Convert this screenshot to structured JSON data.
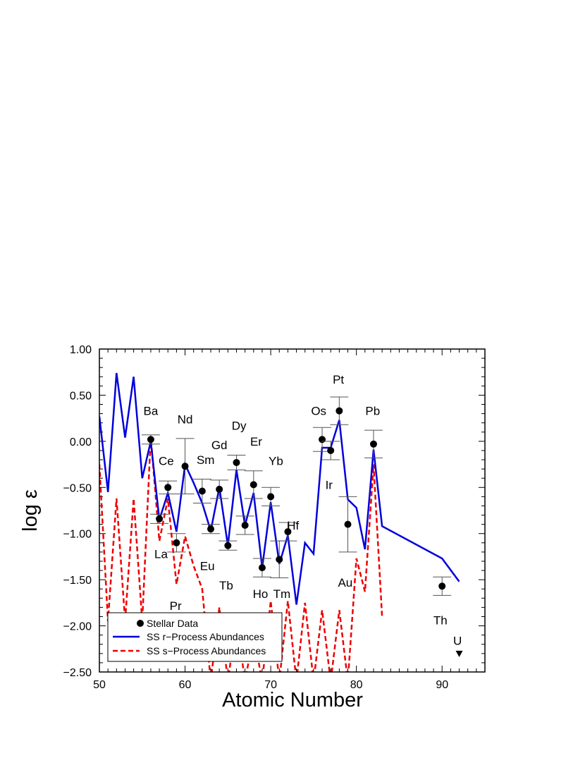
{
  "chart_data": {
    "type": "scatter",
    "xlabel": "Atomic Number",
    "ylabel": "log ε",
    "xlim": [
      50,
      95
    ],
    "ylim": [
      -2.5,
      1.0
    ],
    "x_ticks": [
      50,
      60,
      70,
      80,
      90
    ],
    "x_tick_labels": [
      "50",
      "60",
      "70",
      "80",
      "90"
    ],
    "y_ticks": [
      1.0,
      0.5,
      0.0,
      -0.5,
      -1.0,
      -1.5,
      -2.0,
      -2.5
    ],
    "y_tick_labels": [
      "1.00",
      "0.50",
      "0.00",
      "−0.50",
      "−1.00",
      "−1.50",
      "−2.00",
      "−2.50"
    ],
    "grid": false,
    "legend_position": "bottom-left",
    "legend": [
      {
        "label": "Stellar Data",
        "style": "marker",
        "color": "#000000"
      },
      {
        "label": "SS r−Process Abundances",
        "style": "solid",
        "color": "#0000dd"
      },
      {
        "label": "SS s−Process Abundances",
        "style": "dashed",
        "color": "#ee0000"
      }
    ],
    "stellar_data": [
      {
        "z": 56,
        "y": 0.02,
        "err": 0.05
      },
      {
        "z": 57,
        "y": -0.84,
        "err": 0.05
      },
      {
        "z": 58,
        "y": -0.5,
        "err": 0.07
      },
      {
        "z": 59,
        "y": -1.1,
        "err": 0.1
      },
      {
        "z": 60,
        "y": -0.27,
        "err": 0.3
      },
      {
        "z": 62,
        "y": -0.54,
        "err": 0.13
      },
      {
        "z": 63,
        "y": -0.95,
        "err": 0.05
      },
      {
        "z": 64,
        "y": -0.52,
        "err": 0.1
      },
      {
        "z": 65,
        "y": -1.13,
        "err": 0.05
      },
      {
        "z": 66,
        "y": -0.23,
        "err": 0.08
      },
      {
        "z": 67,
        "y": -0.91,
        "err": 0.1
      },
      {
        "z": 68,
        "y": -0.47,
        "err": 0.15
      },
      {
        "z": 69,
        "y": -1.37,
        "err": 0.1
      },
      {
        "z": 70,
        "y": -0.6,
        "err": 0.1
      },
      {
        "z": 71,
        "y": -1.28,
        "err": 0.2
      },
      {
        "z": 72,
        "y": -0.98,
        "err": 0.1
      },
      {
        "z": 76,
        "y": 0.02,
        "err": 0.13
      },
      {
        "z": 77,
        "y": -0.1,
        "err": 0.1
      },
      {
        "z": 78,
        "y": 0.33,
        "err": 0.15
      },
      {
        "z": 79,
        "y": -0.9,
        "err": 0.3
      },
      {
        "z": 82,
        "y": -0.03,
        "err": 0.15
      },
      {
        "z": 90,
        "y": -1.57,
        "err": 0.1
      }
    ],
    "upper_limits": [
      {
        "z": 92,
        "y": -2.3
      }
    ],
    "r_process": {
      "name": "SS r−Process Abundances",
      "color": "#0000dd",
      "points": [
        [
          50,
          0.27
        ],
        [
          51,
          -0.55
        ],
        [
          52,
          0.74
        ],
        [
          53,
          0.04
        ],
        [
          54,
          0.7
        ],
        [
          55,
          -0.4
        ],
        [
          56,
          0.0
        ],
        [
          57,
          -0.85
        ],
        [
          58,
          -0.56
        ],
        [
          59,
          -0.98
        ],
        [
          60,
          -0.25
        ],
        [
          61,
          -0.45
        ],
        [
          62,
          -0.67
        ],
        [
          63,
          -0.97
        ],
        [
          64,
          -0.5
        ],
        [
          65,
          -1.13
        ],
        [
          66,
          -0.31
        ],
        [
          67,
          -0.91
        ],
        [
          68,
          -0.56
        ],
        [
          69,
          -1.37
        ],
        [
          70,
          -0.66
        ],
        [
          71,
          -1.33
        ],
        [
          72,
          -1.02
        ],
        [
          73,
          -1.77
        ],
        [
          74,
          -1.1
        ],
        [
          75,
          -1.22
        ],
        [
          76,
          -0.07
        ],
        [
          77,
          -0.07
        ],
        [
          78,
          0.23
        ],
        [
          79,
          -0.63
        ],
        [
          80,
          -0.72
        ],
        [
          81,
          -1.17
        ],
        [
          82,
          -0.09
        ],
        [
          83,
          -0.92
        ],
        [
          90,
          -1.27
        ],
        [
          92,
          -1.52
        ]
      ]
    },
    "s_process": {
      "name": "SS s−Process Abundances",
      "color": "#ee0000",
      "points": [
        [
          50,
          -0.25
        ],
        [
          51,
          -1.95
        ],
        [
          52,
          -0.62
        ],
        [
          53,
          -1.95
        ],
        [
          54,
          -0.62
        ],
        [
          55,
          -1.95
        ],
        [
          56,
          0.05
        ],
        [
          57,
          -1.08
        ],
        [
          58,
          -0.62
        ],
        [
          59,
          -1.55
        ],
        [
          60,
          -1.03
        ],
        [
          61,
          -1.35
        ],
        [
          62,
          -1.6
        ],
        [
          63,
          -2.6
        ],
        [
          64,
          -1.8
        ],
        [
          65,
          -2.6
        ],
        [
          66,
          -1.93
        ],
        [
          67,
          -2.6
        ],
        [
          68,
          -2.1
        ],
        [
          69,
          -2.6
        ],
        [
          70,
          -1.73
        ],
        [
          71,
          -2.6
        ],
        [
          72,
          -1.73
        ],
        [
          73,
          -2.6
        ],
        [
          74,
          -1.75
        ],
        [
          75,
          -2.6
        ],
        [
          76,
          -1.83
        ],
        [
          77,
          -2.6
        ],
        [
          78,
          -1.83
        ],
        [
          79,
          -2.6
        ],
        [
          80,
          -1.27
        ],
        [
          81,
          -1.63
        ],
        [
          82,
          -0.25
        ],
        [
          83,
          -1.9
        ]
      ]
    },
    "element_labels": [
      {
        "text": "Ba",
        "z": 56.0,
        "y": 0.33
      },
      {
        "text": "La",
        "z": 57.2,
        "y": -1.22
      },
      {
        "text": "Ce",
        "z": 57.8,
        "y": -0.21
      },
      {
        "text": "Pr",
        "z": 58.9,
        "y": -1.78
      },
      {
        "text": "Nd",
        "z": 60.0,
        "y": 0.24
      },
      {
        "text": "Sm",
        "z": 62.4,
        "y": -0.2
      },
      {
        "text": "Eu",
        "z": 62.6,
        "y": -1.35
      },
      {
        "text": "Gd",
        "z": 64.0,
        "y": -0.04
      },
      {
        "text": "Tb",
        "z": 64.8,
        "y": -1.56
      },
      {
        "text": "Dy",
        "z": 66.3,
        "y": 0.17
      },
      {
        "text": "Er",
        "z": 68.3,
        "y": 0.0
      },
      {
        "text": "Ho",
        "z": 68.8,
        "y": -1.65
      },
      {
        "text": "Yb",
        "z": 70.6,
        "y": -0.21
      },
      {
        "text": "Tm",
        "z": 71.3,
        "y": -1.65
      },
      {
        "text": "Hf",
        "z": 72.6,
        "y": -0.91
      },
      {
        "text": "Os",
        "z": 75.6,
        "y": 0.33
      },
      {
        "text": "Ir",
        "z": 76.8,
        "y": -0.47
      },
      {
        "text": "Pt",
        "z": 77.9,
        "y": 0.67
      },
      {
        "text": "Au",
        "z": 78.7,
        "y": -1.53
      },
      {
        "text": "Pb",
        "z": 81.9,
        "y": 0.33
      },
      {
        "text": "Th",
        "z": 89.8,
        "y": -1.94
      },
      {
        "text": "U",
        "z": 91.8,
        "y": -2.16
      }
    ]
  }
}
